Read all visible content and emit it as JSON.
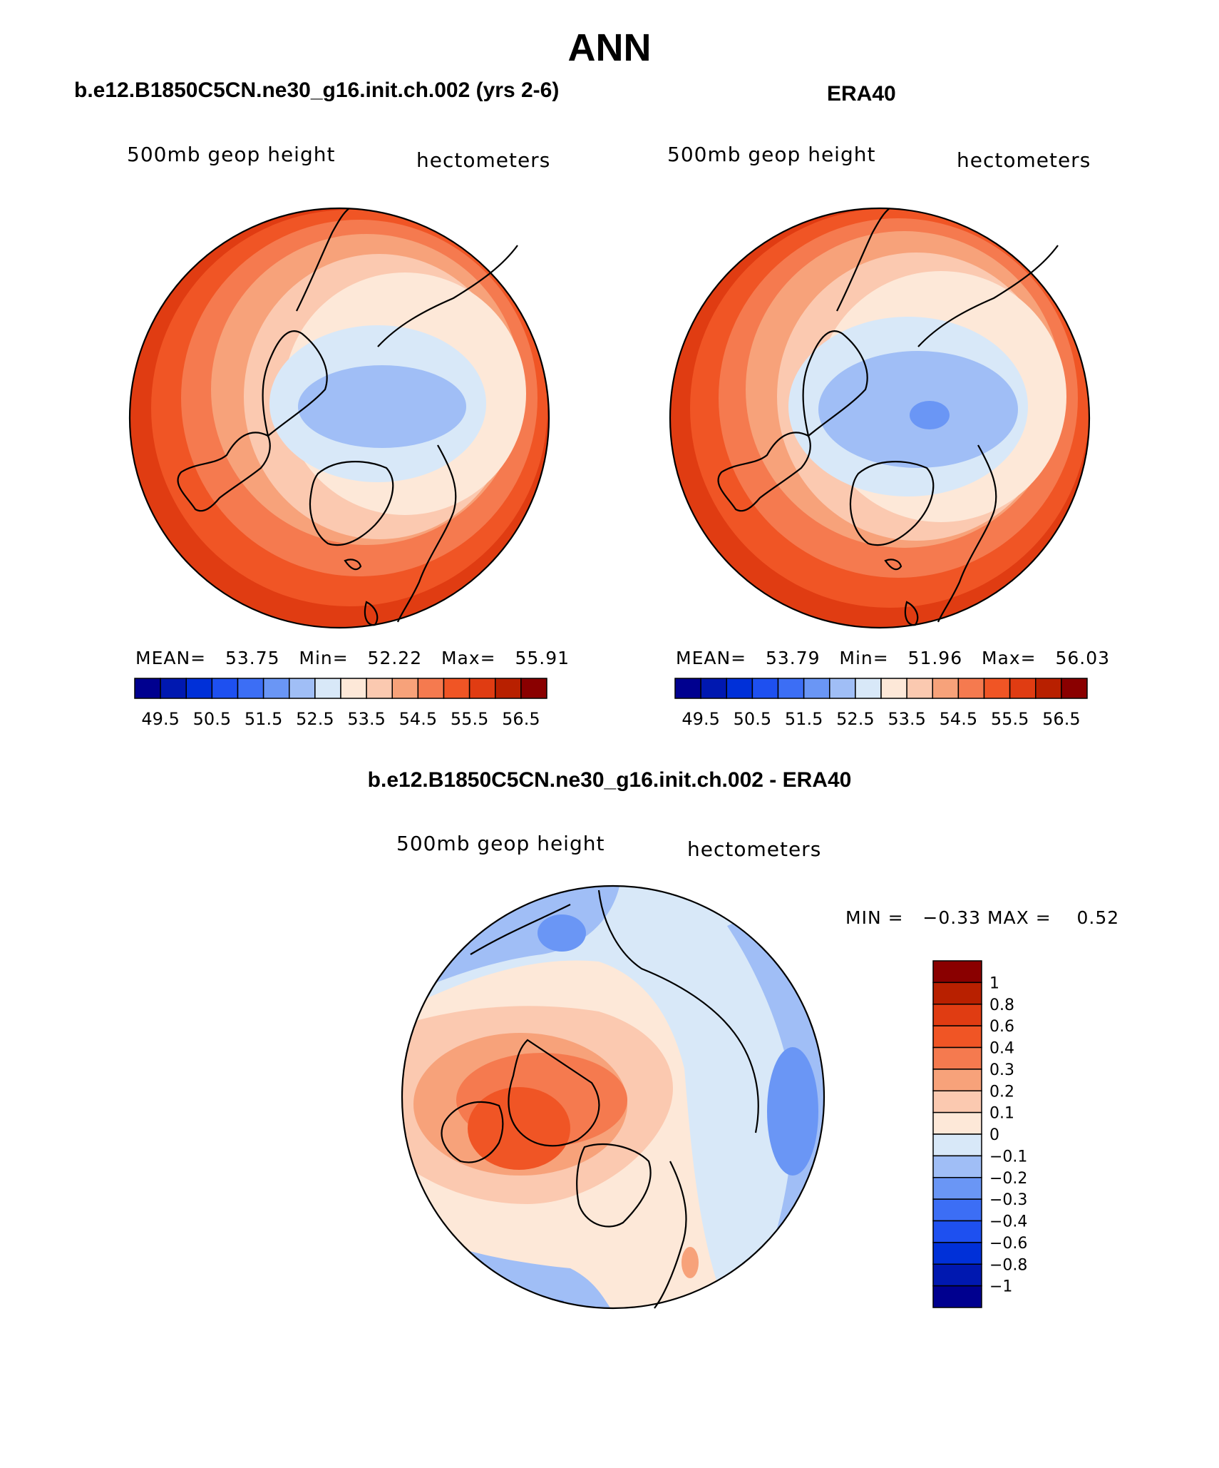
{
  "title": "ANN",
  "panels": {
    "model": {
      "name": "b.e12.B1850C5CN.ne30_g16.init.ch.002 (yrs 2-6)",
      "field": "500mb geop height",
      "units": "hectometers",
      "mean_label": "MEAN=",
      "mean": "53.75",
      "min_label": "Min=",
      "min": "52.22",
      "max_label": "Max=",
      "max": "55.91"
    },
    "obs": {
      "name": "ERA40",
      "field": "500mb geop height",
      "units": "hectometers",
      "mean_label": "MEAN=",
      "mean": "53.79",
      "min_label": "Min=",
      "min": "51.96",
      "max_label": "Max=",
      "max": "56.03"
    },
    "diff": {
      "name": "b.e12.B1850C5CN.ne30_g16.init.ch.002 - ERA40",
      "field": "500mb geop height",
      "units": "hectometers",
      "min_label": "MIN =",
      "min": "−0.33",
      "max_label": "MAX =",
      "max": "0.52"
    }
  },
  "colorbar_main": {
    "colors": [
      "#00008f",
      "#0018b0",
      "#0030d8",
      "#1e50f0",
      "#3c6ef5",
      "#6a96f5",
      "#a0bef6",
      "#d8e8f8",
      "#fde8d8",
      "#fbc9b0",
      "#f7a27a",
      "#f57a4f",
      "#f05525",
      "#e03c12",
      "#b82000",
      "#8a0000"
    ],
    "tick_labels": [
      "49.5",
      "50.5",
      "51.5",
      "52.5",
      "53.5",
      "54.5",
      "55.5",
      "56.5"
    ]
  },
  "colorbar_diff": {
    "colors": [
      "#8a0000",
      "#b82000",
      "#e03c12",
      "#f05525",
      "#f57a4f",
      "#f7a27a",
      "#fbc9b0",
      "#fde8d8",
      "#d8e8f8",
      "#a0bef6",
      "#6a96f5",
      "#3c6ef5",
      "#1e50f0",
      "#0030d8",
      "#0018b0",
      "#00008f"
    ],
    "tick_labels": [
      "1",
      "0.8",
      "0.6",
      "0.4",
      "0.3",
      "0.2",
      "0.1",
      "0",
      "−0.1",
      "−0.2",
      "−0.3",
      "−0.4",
      "−0.6",
      "−0.8",
      "−1"
    ]
  }
}
